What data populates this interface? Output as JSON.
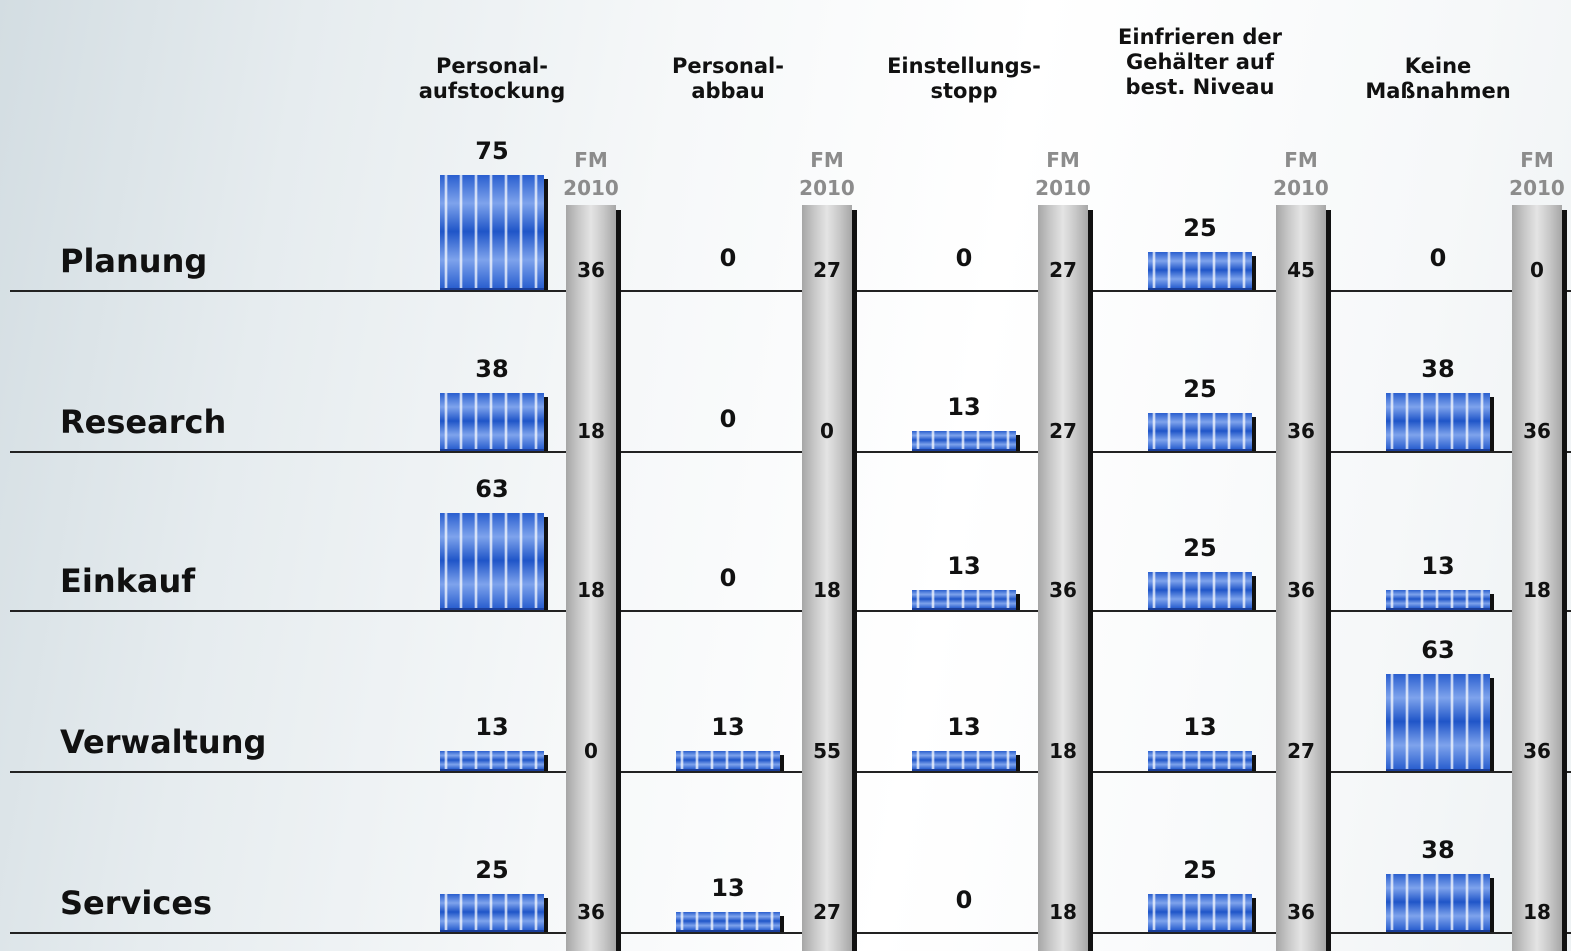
{
  "chart_data": {
    "type": "bar",
    "title": "",
    "columns": [
      "Personal-\naufstockung",
      "Personal-\nabbau",
      "Einstellungs-\nstopp",
      "Einfrieren der\nGehälter auf\nbest. Niveau",
      "Keine\nMaßnahmen"
    ],
    "fm_label": "FM\n2010",
    "categories": [
      "Planung",
      "Research",
      "Einkauf",
      "Verwaltung",
      "Services"
    ],
    "values": [
      [
        75,
        0,
        0,
        25,
        0
      ],
      [
        38,
        0,
        13,
        25,
        38
      ],
      [
        63,
        0,
        13,
        25,
        13
      ],
      [
        13,
        13,
        13,
        13,
        63
      ],
      [
        25,
        13,
        0,
        25,
        38
      ]
    ],
    "fm2010_values": [
      [
        36,
        27,
        27,
        45,
        0
      ],
      [
        18,
        0,
        27,
        36,
        36
      ],
      [
        18,
        18,
        36,
        36,
        18
      ],
      [
        0,
        55,
        18,
        27,
        36
      ],
      [
        36,
        27,
        18,
        36,
        18
      ]
    ],
    "bar_color": "#2a5fcf",
    "fm_strip_color": "#c8c8c8"
  }
}
